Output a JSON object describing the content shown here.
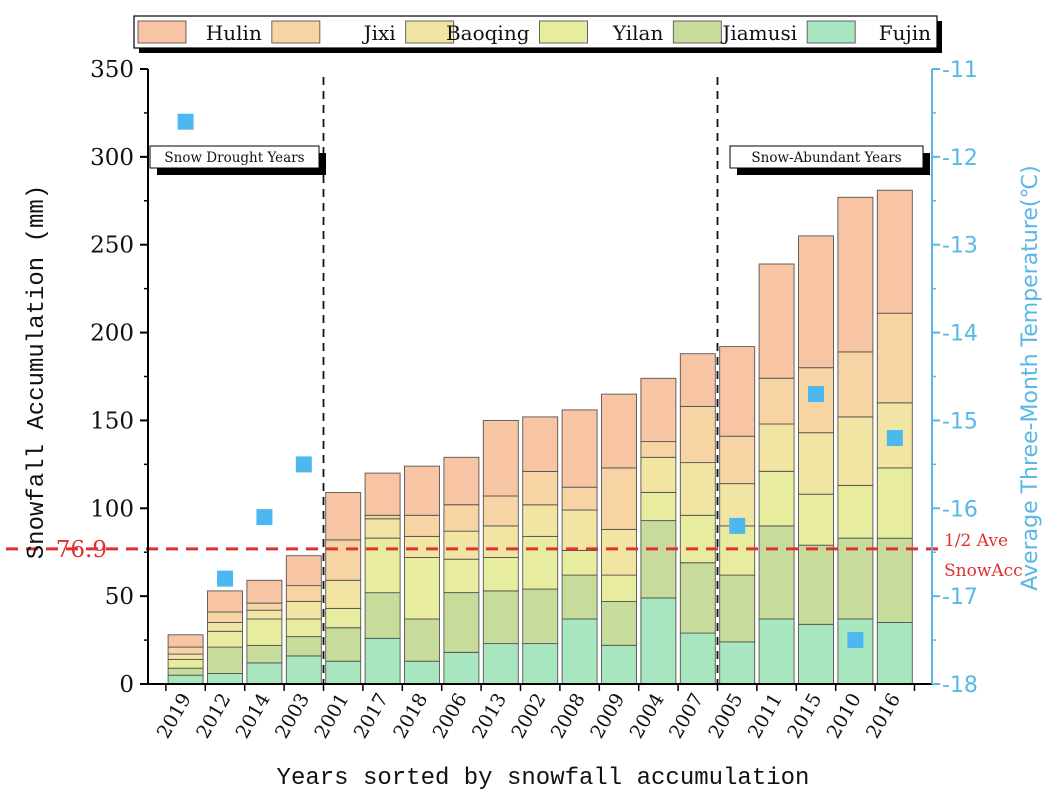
{
  "chart_data": {
    "type": "bar",
    "stacked": true,
    "title": "",
    "xlabel": "Years sorted by snowfall accumulation",
    "ylabel": "Snowfall Accumulation (mm)",
    "y2label": "Average Three-Month Temperature(℃)",
    "ylim": [
      0,
      350
    ],
    "y2lim": [
      -18,
      -11
    ],
    "yticks": [
      "0",
      "50",
      "100",
      "150",
      "200",
      "250",
      "300",
      "350"
    ],
    "y2ticks": [
      "-11",
      "-12",
      "-13",
      "-14",
      "-15",
      "-16",
      "-17",
      "-18"
    ],
    "categories": [
      "2019",
      "2012",
      "2014",
      "2003",
      "2001",
      "2017",
      "2018",
      "2006",
      "2013",
      "2002",
      "2008",
      "2009",
      "2004",
      "2007",
      "2005",
      "2011",
      "2015",
      "2010",
      "2016"
    ],
    "series": [
      {
        "name": "Fujin",
        "color": "#a8e6c0",
        "values": [
          5,
          6,
          12,
          16,
          13,
          26,
          13,
          18,
          23,
          23,
          37,
          22,
          49,
          29,
          24,
          37,
          34,
          37,
          35
        ]
      },
      {
        "name": "Jiamusi",
        "color": "#c7dc9a",
        "values": [
          4,
          15,
          10,
          11,
          19,
          26,
          24,
          34,
          30,
          31,
          25,
          25,
          44,
          40,
          38,
          53,
          45,
          46,
          48
        ]
      },
      {
        "name": "Yilan",
        "color": "#e8ec9e",
        "values": [
          5,
          9,
          15,
          10,
          11,
          31,
          35,
          19,
          19,
          30,
          14,
          15,
          16,
          27,
          28,
          31,
          29,
          30,
          40
        ]
      },
      {
        "name": "Baoqing",
        "color": "#f2e4a2",
        "values": [
          3,
          5,
          5,
          10,
          16,
          11,
          12,
          16,
          18,
          18,
          23,
          26,
          20,
          30,
          24,
          27,
          35,
          39,
          37
        ]
      },
      {
        "name": "Jixi",
        "color": "#f6d4a3",
        "values": [
          4,
          6,
          4,
          9,
          23,
          2,
          12,
          15,
          17,
          19,
          13,
          35,
          9,
          32,
          27,
          26,
          37,
          37,
          51
        ]
      },
      {
        "name": "Hulin",
        "color": "#f7c4a4",
        "values": [
          7,
          12,
          13,
          17,
          27,
          24,
          28,
          27,
          43,
          31,
          44,
          42,
          36,
          30,
          51,
          65,
          75,
          88,
          70
        ]
      }
    ],
    "temperature_series": {
      "name": "Average Three-Month Temperature",
      "color": "#4db8f0",
      "values": [
        -11.6,
        -16.8,
        -16.1,
        -15.5,
        null,
        null,
        null,
        null,
        null,
        null,
        null,
        null,
        null,
        null,
        -16.2,
        null,
        -14.7,
        -17.5,
        -15.2
      ]
    },
    "reference_line": {
      "value": 76.9,
      "value_label": "76.9",
      "label_line1": "1/2 Ave",
      "label_line2": "SnowAcc",
      "color": "#e03030"
    },
    "period_dividers": [
      {
        "after_category": "2003"
      },
      {
        "after_category": "2007"
      }
    ],
    "region_labels": [
      "Snow Drought Years",
      "Snow-Abundant Years"
    ],
    "legend_order": [
      "Hulin",
      "Jixi",
      "Baoqing",
      "Yilan",
      "Jiamusi",
      "Fujin"
    ],
    "legend_position": "top",
    "grid": false,
    "colors": {
      "axis": "#000000",
      "right_axis": "#5ab8e6",
      "bar_border": "#555555"
    }
  }
}
